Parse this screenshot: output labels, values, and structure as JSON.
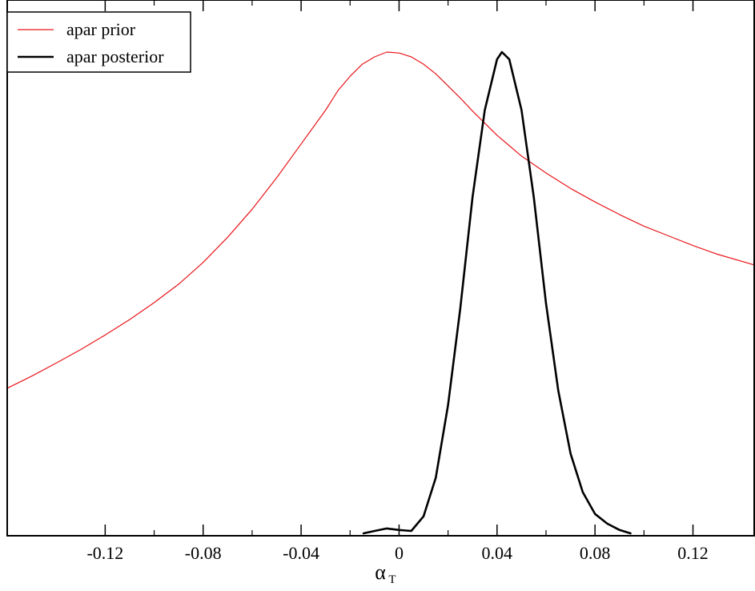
{
  "chart_data": {
    "type": "line",
    "title": "",
    "xlabel": "α",
    "xlabel_subscript": "T",
    "ylabel": "",
    "xlim": [
      -0.16,
      0.145
    ],
    "ylim": [
      0,
      1.0
    ],
    "x_ticks": [
      -0.12,
      -0.08,
      -0.04,
      0,
      0.04,
      0.08,
      0.12
    ],
    "x_tick_labels": [
      "-0.12",
      "-0.08",
      "-0.04",
      "0",
      "0.04",
      "0.08",
      "0.12"
    ],
    "y_tick_labels_shown": false,
    "grid": false,
    "legend_position": "top-left",
    "series": [
      {
        "name": "apar prior",
        "color": "#e8161b",
        "line_width": 1.2,
        "x": [
          -0.16,
          -0.15,
          -0.14,
          -0.13,
          -0.12,
          -0.11,
          -0.1,
          -0.09,
          -0.08,
          -0.07,
          -0.06,
          -0.05,
          -0.04,
          -0.035,
          -0.03,
          -0.025,
          -0.02,
          -0.015,
          -0.01,
          -0.005,
          0,
          0.005,
          0.01,
          0.015,
          0.02,
          0.025,
          0.03,
          0.04,
          0.05,
          0.06,
          0.07,
          0.08,
          0.09,
          0.1,
          0.11,
          0.12,
          0.13,
          0.145
        ],
        "values": [
          0.305,
          0.33,
          0.357,
          0.385,
          0.415,
          0.447,
          0.482,
          0.52,
          0.565,
          0.617,
          0.675,
          0.74,
          0.81,
          0.845,
          0.88,
          0.92,
          0.95,
          0.975,
          0.99,
          1.0,
          0.998,
          0.99,
          0.975,
          0.955,
          0.93,
          0.905,
          0.878,
          0.828,
          0.785,
          0.75,
          0.718,
          0.69,
          0.664,
          0.64,
          0.62,
          0.6,
          0.582,
          0.56
        ]
      },
      {
        "name": "apar posterior",
        "color": "#000000",
        "line_width": 2.6,
        "x": [
          -0.0145,
          -0.01,
          -0.005,
          0,
          0.005,
          0.01,
          0.015,
          0.02,
          0.025,
          0.03,
          0.035,
          0.04,
          0.042,
          0.045,
          0.05,
          0.055,
          0.06,
          0.065,
          0.07,
          0.075,
          0.08,
          0.085,
          0.09,
          0.0945
        ],
        "values": [
          0.005,
          0.01,
          0.015,
          0.012,
          0.01,
          0.04,
          0.12,
          0.27,
          0.47,
          0.7,
          0.88,
          0.985,
          1.0,
          0.985,
          0.88,
          0.7,
          0.48,
          0.3,
          0.17,
          0.09,
          0.045,
          0.025,
          0.012,
          0.005
        ]
      }
    ]
  }
}
